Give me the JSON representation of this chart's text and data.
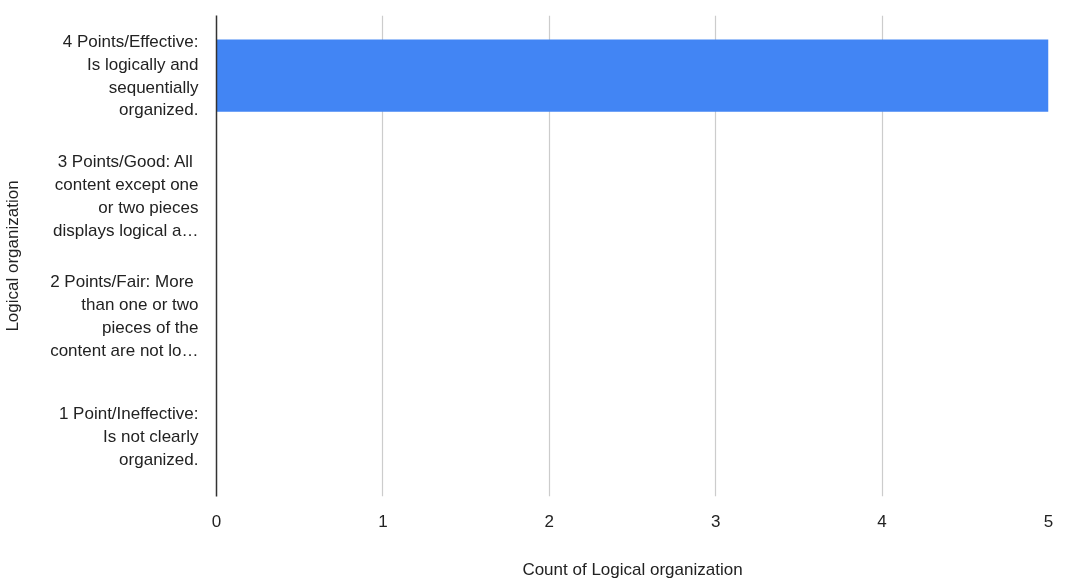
{
  "chart_data": {
    "type": "bar",
    "orientation": "horizontal",
    "xlabel": "Count of Logical organization",
    "ylabel": "Logical organization",
    "categories": [
      "4 Points/Effective: Is logically and sequentially organized.",
      "3 Points/Good:  All content except one or two pieces displays logical a…",
      "2 Points/Fair:  More than one or two pieces of the content are not lo…",
      "1 Point/Ineffective: Is not clearly organized."
    ],
    "series": [
      {
        "color": "#4285f4",
        "values": [
          5,
          0,
          0,
          0
        ]
      }
    ],
    "xlim": [
      0,
      5
    ],
    "xticks": [
      0,
      1,
      2,
      3,
      4,
      5
    ],
    "grid": "x"
  }
}
